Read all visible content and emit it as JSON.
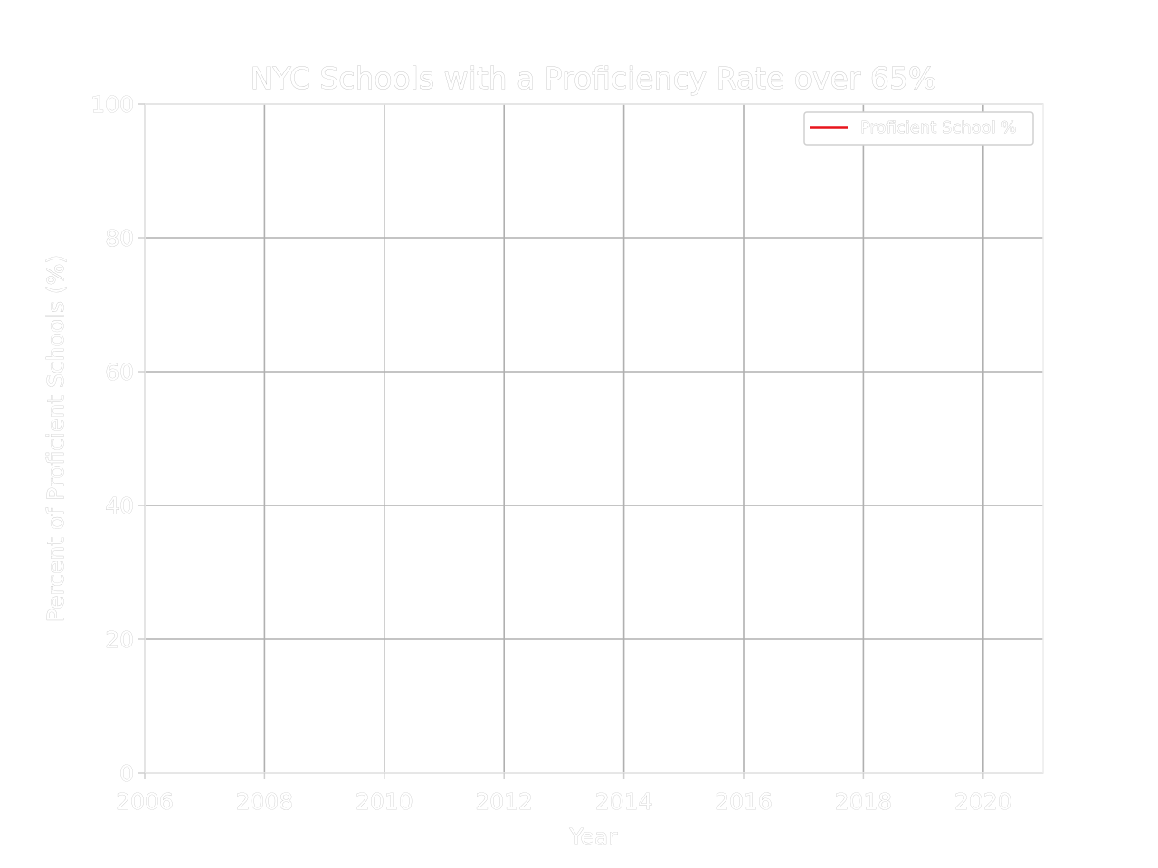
{
  "chart_data": {
    "type": "line",
    "title": "NYC Schools with a Proficiency Rate over 65%",
    "xlabel": "Year",
    "ylabel": "Percent of Proficient Schools (%)",
    "xlim": [
      2006,
      2021
    ],
    "ylim": [
      0,
      100
    ],
    "x_ticks": [
      2006,
      2008,
      2010,
      2012,
      2014,
      2016,
      2018,
      2020
    ],
    "y_ticks": [
      0,
      20,
      40,
      60,
      80,
      100
    ],
    "grid": true,
    "legend_position": "top-right",
    "series": [
      {
        "name": "Proficient School %",
        "color": "#e8141c",
        "x": [],
        "y": []
      }
    ]
  }
}
